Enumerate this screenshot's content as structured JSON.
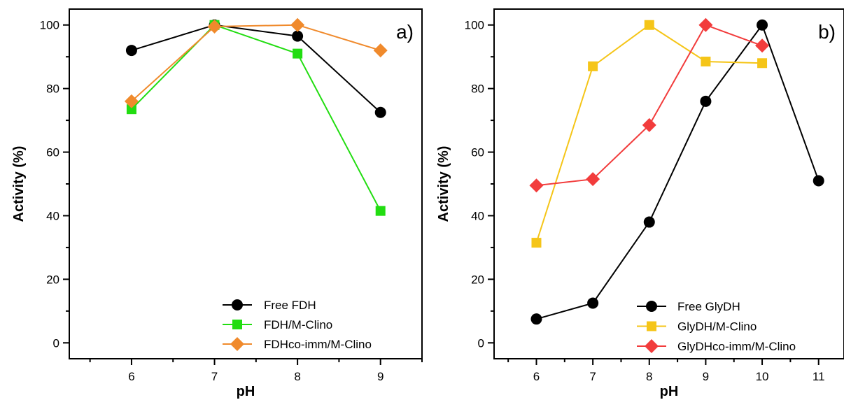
{
  "chart_data": [
    {
      "type": "line",
      "panel_label": "a)",
      "xlabel": "pH",
      "ylabel": "Activity (%)",
      "xlim": [
        5.25,
        9.5
      ],
      "ylim": [
        -5,
        105
      ],
      "xticks": [
        6,
        7,
        8,
        9
      ],
      "yticks": [
        0,
        20,
        40,
        60,
        80,
        100
      ],
      "grid": false,
      "legend_position": "bottom-right",
      "series": [
        {
          "name": "Free FDH",
          "color": "#000000",
          "marker": "circle",
          "x": [
            6,
            7,
            8,
            9
          ],
          "y": [
            92,
            100,
            96.5,
            72.5
          ]
        },
        {
          "name": "FDH/M-Clino",
          "color": "#22dd11",
          "marker": "square",
          "x": [
            6,
            7,
            8,
            9
          ],
          "y": [
            73.5,
            100,
            91,
            41.5
          ]
        },
        {
          "name": "FDHco-imm/M-Clino",
          "color": "#f08a2c",
          "marker": "diamond",
          "x": [
            6,
            7,
            8,
            9
          ],
          "y": [
            76,
            99.5,
            100,
            92
          ]
        }
      ]
    },
    {
      "type": "line",
      "panel_label": "b)",
      "xlabel": "pH",
      "ylabel": "Activity (%)",
      "xlim": [
        5.25,
        11.45
      ],
      "ylim": [
        -5,
        105
      ],
      "xticks": [
        6,
        7,
        8,
        9,
        10,
        11
      ],
      "yticks": [
        0,
        20,
        40,
        60,
        80,
        100
      ],
      "grid": false,
      "legend_position": "bottom-right",
      "series": [
        {
          "name": "Free GlyDH",
          "color": "#000000",
          "marker": "circle",
          "x": [
            6,
            7,
            8,
            9,
            10,
            11
          ],
          "y": [
            7.5,
            12.5,
            38,
            76,
            100,
            51
          ]
        },
        {
          "name": "GlyDH/M-Clino",
          "color": "#f5c518",
          "marker": "square",
          "x": [
            6,
            7,
            8,
            9,
            10
          ],
          "y": [
            31.5,
            87,
            100,
            88.5,
            88
          ]
        },
        {
          "name": "GlyDHco-imm/M-Clino",
          "color": "#f23c3c",
          "marker": "diamond",
          "x": [
            6,
            7,
            8,
            9,
            10
          ],
          "y": [
            49.5,
            51.5,
            68.5,
            100,
            93.5
          ]
        }
      ]
    }
  ]
}
